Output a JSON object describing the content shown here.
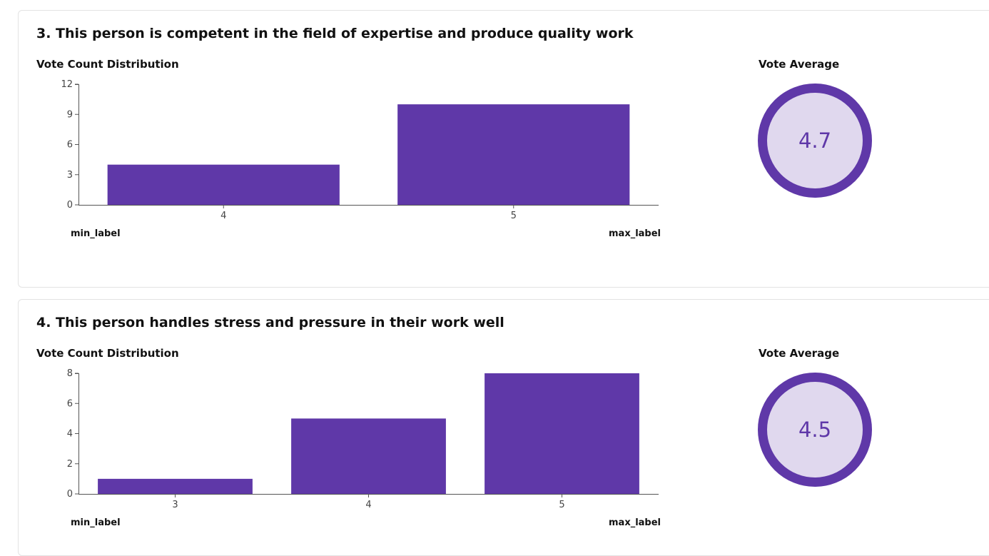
{
  "colors": {
    "bar": "#5f38a8",
    "gauge_ring": "#5f38a8",
    "gauge_fill": "#e0d8ee",
    "gauge_text": "#5f38a8",
    "axis": "#555555"
  },
  "questions": [
    {
      "title": "3. This person is competent in the field of expertise and produce quality work",
      "dist_label": "Vote Count Distribution",
      "avg_label": "Vote Average",
      "average": "4.7",
      "min_label": "min_label",
      "max_label": "max_label"
    },
    {
      "title": "4. This person handles stress and pressure in their work well",
      "dist_label": "Vote Count Distribution",
      "avg_label": "Vote Average",
      "average": "4.5",
      "min_label": "min_label",
      "max_label": "max_label"
    }
  ],
  "chart_data": [
    {
      "type": "bar",
      "title": "Vote Count Distribution",
      "categories": [
        "4",
        "5"
      ],
      "values": [
        4,
        10
      ],
      "yticks": [
        0,
        3,
        6,
        9,
        12
      ],
      "ylim": [
        0,
        12
      ]
    },
    {
      "type": "bar",
      "title": "Vote Count Distribution",
      "categories": [
        "3",
        "4",
        "5"
      ],
      "values": [
        1,
        5,
        8
      ],
      "yticks": [
        0,
        2,
        4,
        6,
        8
      ],
      "ylim": [
        0,
        8
      ]
    }
  ]
}
